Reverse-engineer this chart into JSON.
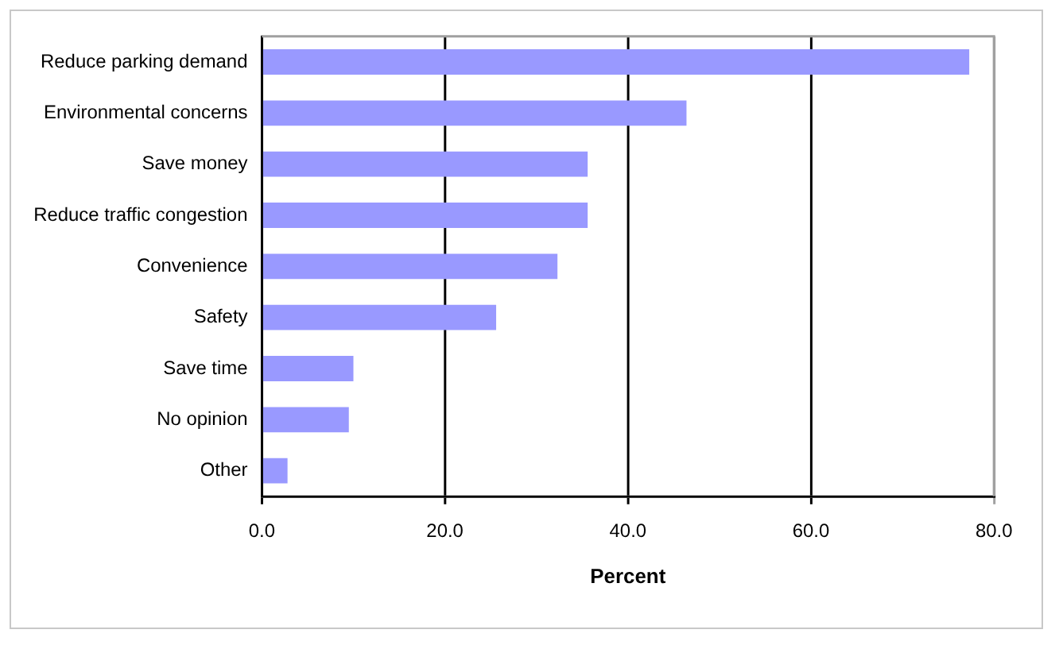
{
  "chart_data": {
    "type": "bar",
    "orientation": "horizontal",
    "xlabel": "Percent",
    "categories": [
      "Reduce parking demand",
      "Environmental concerns",
      "Save money",
      "Reduce traffic congestion",
      "Convenience",
      "Safety",
      "Save time",
      "No opinion",
      "Other"
    ],
    "values": [
      77.3,
      46.4,
      35.6,
      35.6,
      32.3,
      25.6,
      10.0,
      9.5,
      2.8
    ],
    "color": "#9999ff",
    "xlim": [
      0,
      80
    ],
    "xticks": [
      {
        "value": 0,
        "label": "0.0"
      },
      {
        "value": 20,
        "label": "20.0"
      },
      {
        "value": 40,
        "label": "40.0"
      },
      {
        "value": 60,
        "label": "60.0"
      },
      {
        "value": 80,
        "label": "80.0"
      }
    ],
    "grid": "x",
    "legend": false
  }
}
